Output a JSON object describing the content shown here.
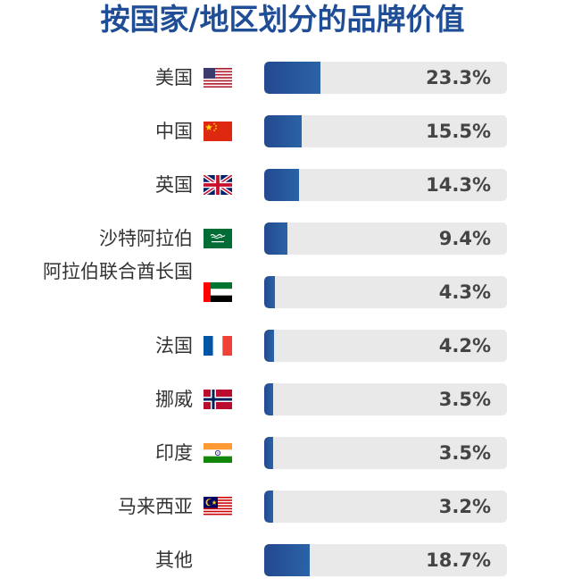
{
  "title": "按国家/地区划分的品牌价值",
  "colors": {
    "title": "#1f4e97",
    "bar": "#2a5aa0",
    "track": "#e9e9e9"
  },
  "chart_data": {
    "type": "bar",
    "orientation": "horizontal",
    "title": "按国家/地区划分的品牌价值",
    "unit": "%",
    "xlim": [
      0,
      100
    ],
    "grid": false,
    "categories": [
      "美国",
      "中国",
      "英国",
      "沙特阿拉伯",
      "阿拉伯联合酋长国",
      "法国",
      "挪威",
      "印度",
      "马来西亚",
      "其他"
    ],
    "flags": [
      "us-flag-icon",
      "china-flag-icon",
      "uk-flag-icon",
      "saudi-flag-icon",
      "uae-flag-icon",
      "france-flag-icon",
      "norway-flag-icon",
      "india-flag-icon",
      "malaysia-flag-icon",
      null
    ],
    "values": [
      23.3,
      15.5,
      14.3,
      9.4,
      4.3,
      4.2,
      3.5,
      3.5,
      3.2,
      18.7
    ],
    "value_labels": [
      "23.3%",
      "15.5%",
      "14.3%",
      "9.4%",
      "4.3%",
      "4.2%",
      "3.5%",
      "3.5%",
      "3.2%",
      "18.7%"
    ]
  }
}
